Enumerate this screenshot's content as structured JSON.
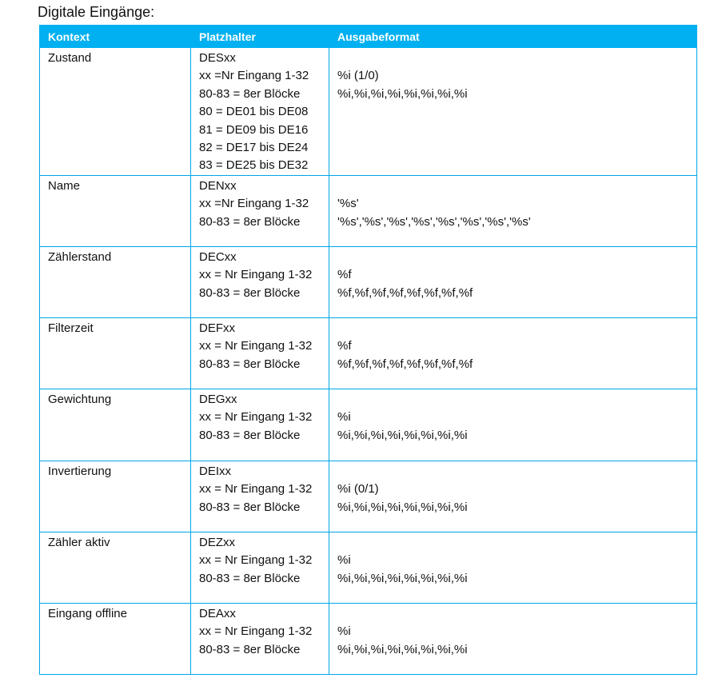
{
  "title": "Digitale Eingänge:",
  "header_color": "#00b0f0",
  "columns": [
    "Kontext",
    "Platzhalter",
    "Ausgabeformat"
  ],
  "rows": [
    {
      "kontext": "Zustand",
      "platzhalter": [
        "DESxx",
        "xx =Nr Eingang 1-32",
        "80-83 = 8er Blöcke",
        "80 = DE01 bis DE08",
        "81 = DE09 bis DE16",
        "82 = DE17 bis DE24",
        "83 = DE25 bis DE32"
      ],
      "ausgabe": [
        "%i (1/0)",
        "%i,%i,%i,%i,%i,%i,%i,%i"
      ],
      "h": 156
    },
    {
      "kontext": "Name",
      "platzhalter": [
        "DENxx",
        "xx =Nr Eingang 1-32",
        "80-83 = 8er Blöcke"
      ],
      "ausgabe": [
        "'%s'",
        "'%s','%s','%s','%s','%s','%s','%s','%s'"
      ],
      "h": 89
    },
    {
      "kontext": "Zählerstand",
      "platzhalter": [
        "DECxx",
        "xx = Nr Eingang 1-32",
        "80-83 = 8er Blöcke"
      ],
      "ausgabe": [
        "%f",
        "%f,%f,%f,%f,%f,%f,%f,%f"
      ],
      "h": 89
    },
    {
      "kontext": "Filterzeit",
      "platzhalter": [
        "DEFxx",
        "xx = Nr Eingang 1-32",
        "80-83 = 8er Blöcke"
      ],
      "ausgabe": [
        "%f",
        "%f,%f,%f,%f,%f,%f,%f,%f"
      ],
      "h": 89
    },
    {
      "kontext": "Gewichtung",
      "platzhalter": [
        "DEGxx",
        "xx = Nr Eingang 1-32",
        "80-83 = 8er Blöcke"
      ],
      "ausgabe": [
        "%i",
        "%i,%i,%i,%i,%i,%i,%i,%i"
      ],
      "h": 90
    },
    {
      "kontext": "Invertierung",
      "platzhalter": [
        "DEIxx",
        "xx = Nr Eingang 1-32",
        "80-83 = 8er Blöcke"
      ],
      "ausgabe": [
        "%i (0/1)",
        "%i,%i,%i,%i,%i,%i,%i,%i"
      ],
      "h": 89
    },
    {
      "kontext": "Zähler aktiv",
      "platzhalter": [
        "DEZxx",
        "xx = Nr Eingang 1-32",
        "80-83 = 8er Blöcke"
      ],
      "ausgabe": [
        "%i",
        "%i,%i,%i,%i,%i,%i,%i,%i"
      ],
      "h": 89
    },
    {
      "kontext": "Eingang offline",
      "platzhalter": [
        "DEAxx",
        "xx = Nr Eingang 1-32",
        "80-83 = 8er Blöcke"
      ],
      "ausgabe": [
        "%i",
        "%i,%i,%i,%i,%i,%i,%i,%i"
      ],
      "h": 89
    }
  ]
}
